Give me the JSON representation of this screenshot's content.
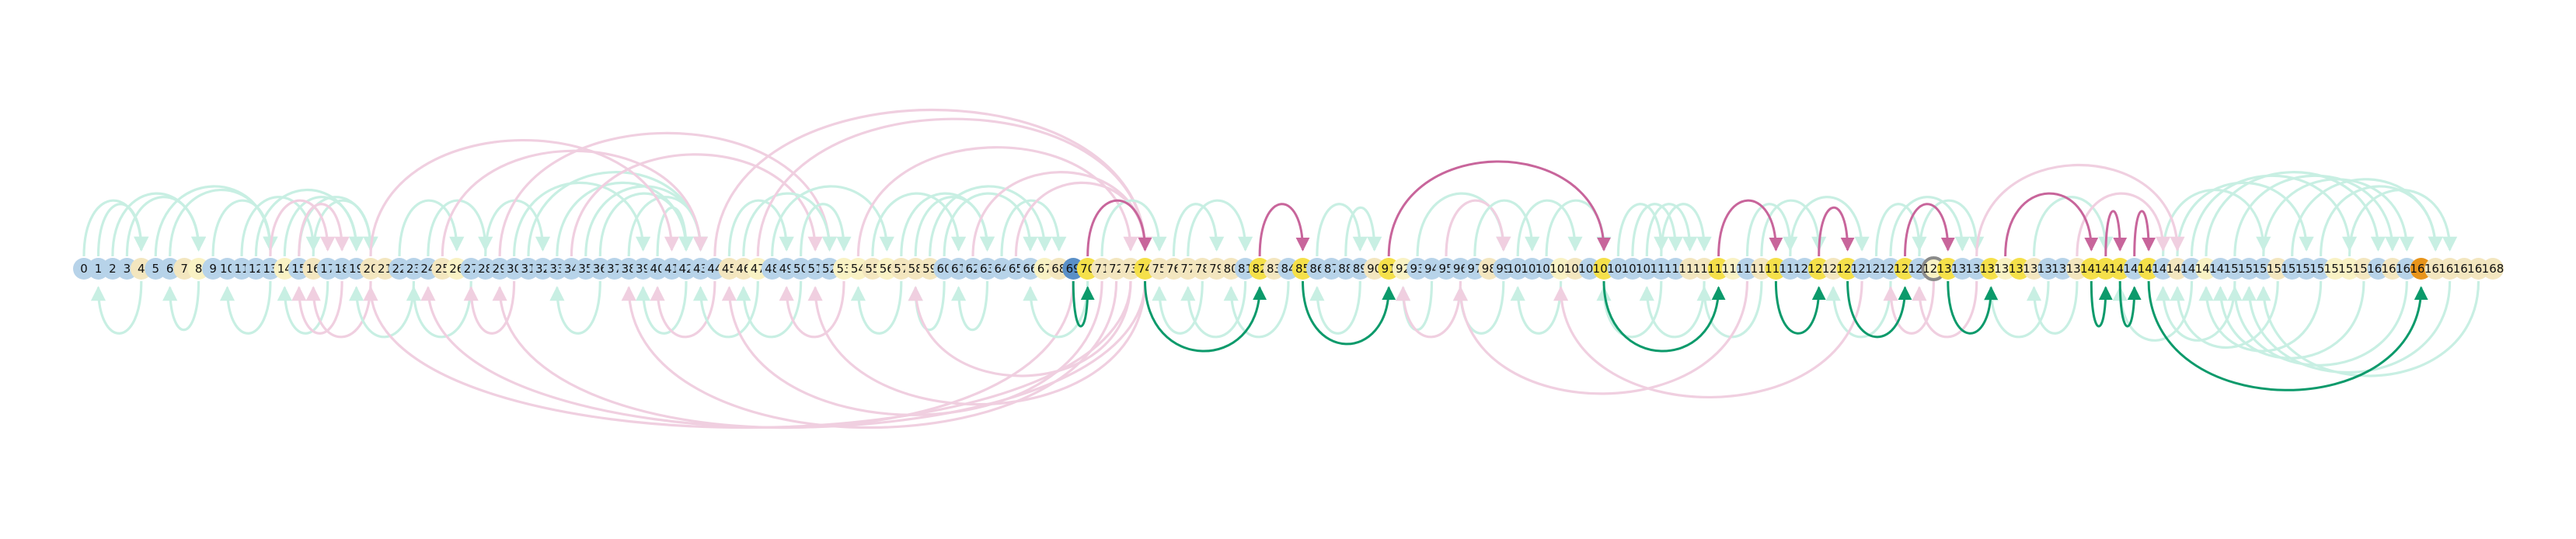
{
  "diagram": {
    "node_count": 169,
    "node_colors": {
      "blue": "#b7d3e9",
      "cream": "#f3e6bf",
      "yellow": "#f5e04a",
      "pale_yellow": "#f9f2c4",
      "orange": "#e8941a",
      "dark_blue": "#5a8fc7",
      "grey_ring": "#8a8a8a"
    },
    "edge_colors": {
      "teal_faint": "#c8efe3",
      "pink_faint": "#f0cfe0",
      "green_strong": "#0c9a6b",
      "magenta_strong": "#c8659b"
    },
    "blue_nodes": [
      0,
      1,
      2,
      3,
      5,
      6,
      9,
      10,
      11,
      12,
      13,
      15,
      17,
      18,
      19,
      22,
      23,
      24,
      27,
      28,
      29,
      30,
      31,
      32,
      33,
      34,
      35,
      36,
      37,
      38,
      39,
      40,
      41,
      42,
      43,
      44,
      48,
      49,
      50,
      51,
      52,
      60,
      61,
      62,
      63,
      64,
      65,
      66,
      81,
      82,
      84,
      86,
      87,
      88,
      89,
      93,
      94,
      95,
      96,
      97,
      99,
      100,
      101,
      102,
      105,
      106,
      107,
      108,
      109,
      110,
      111,
      116,
      119,
      120,
      121,
      123,
      124,
      125,
      126,
      127,
      128,
      131,
      132,
      133,
      137,
      138,
      142,
      143,
      145,
      147,
      149,
      150,
      151,
      152,
      154,
      155,
      156,
      160,
      162
    ],
    "yellow_nodes": [
      69,
      70,
      74,
      82,
      85,
      91,
      106,
      114,
      118,
      121,
      123,
      127,
      130,
      133,
      135,
      140,
      141,
      142,
      144
    ],
    "pale_yellow_nodes": [
      8,
      14,
      26,
      47,
      53,
      54,
      56,
      67,
      92,
      103,
      115,
      129,
      134,
      148,
      157,
      158
    ],
    "orange_nodes": [
      163
    ],
    "dark_blue_nodes": [
      69
    ],
    "ring_nodes": [
      129
    ],
    "edges_above": [
      {
        "from": 0,
        "to": 4,
        "style": "teal_faint"
      },
      {
        "from": 1,
        "to": 4,
        "style": "teal_faint"
      },
      {
        "from": 2,
        "to": 8,
        "style": "teal_faint"
      },
      {
        "from": 3,
        "to": 8,
        "style": "teal_faint"
      },
      {
        "from": 5,
        "to": 13,
        "style": "teal_faint"
      },
      {
        "from": 6,
        "to": 13,
        "style": "teal_faint"
      },
      {
        "from": 9,
        "to": 13,
        "style": "teal_faint"
      },
      {
        "from": 11,
        "to": 16,
        "style": "teal_faint"
      },
      {
        "from": 12,
        "to": 19,
        "style": "teal_faint"
      },
      {
        "from": 14,
        "to": 19,
        "style": "teal_faint"
      },
      {
        "from": 15,
        "to": 20,
        "style": "teal_faint"
      },
      {
        "from": 16,
        "to": 20,
        "style": "teal_faint"
      },
      {
        "from": 13,
        "to": 17,
        "style": "pink_faint"
      },
      {
        "from": 15,
        "to": 18,
        "style": "pink_faint"
      },
      {
        "from": 22,
        "to": 26,
        "style": "teal_faint"
      },
      {
        "from": 24,
        "to": 28,
        "style": "teal_faint"
      },
      {
        "from": 28,
        "to": 32,
        "style": "teal_faint"
      },
      {
        "from": 30,
        "to": 39,
        "style": "teal_faint"
      },
      {
        "from": 31,
        "to": 43,
        "style": "teal_faint"
      },
      {
        "from": 33,
        "to": 42,
        "style": "teal_faint"
      },
      {
        "from": 35,
        "to": 43,
        "style": "teal_faint"
      },
      {
        "from": 36,
        "to": 42,
        "style": "teal_faint"
      },
      {
        "from": 38,
        "to": 43,
        "style": "teal_faint"
      },
      {
        "from": 40,
        "to": 42,
        "style": "teal_faint"
      },
      {
        "from": 20,
        "to": 41,
        "style": "pink_faint"
      },
      {
        "from": 25,
        "to": 43,
        "style": "pink_faint"
      },
      {
        "from": 29,
        "to": 52,
        "style": "pink_faint"
      },
      {
        "from": 34,
        "to": 51,
        "style": "pink_faint"
      },
      {
        "from": 45,
        "to": 49,
        "style": "teal_faint"
      },
      {
        "from": 46,
        "to": 52,
        "style": "teal_faint"
      },
      {
        "from": 48,
        "to": 56,
        "style": "teal_faint"
      },
      {
        "from": 50,
        "to": 53,
        "style": "teal_faint"
      },
      {
        "from": 55,
        "to": 61,
        "style": "teal_faint"
      },
      {
        "from": 57,
        "to": 63,
        "style": "teal_faint"
      },
      {
        "from": 58,
        "to": 63,
        "style": "teal_faint"
      },
      {
        "from": 59,
        "to": 67,
        "style": "teal_faint"
      },
      {
        "from": 60,
        "to": 66,
        "style": "teal_faint"
      },
      {
        "from": 64,
        "to": 68,
        "style": "teal_faint"
      },
      {
        "from": 44,
        "to": 74,
        "style": "pink_faint"
      },
      {
        "from": 47,
        "to": 74,
        "style": "pink_faint"
      },
      {
        "from": 54,
        "to": 73,
        "style": "pink_faint"
      },
      {
        "from": 62,
        "to": 74,
        "style": "pink_faint"
      },
      {
        "from": 65,
        "to": 74,
        "style": "pink_faint"
      },
      {
        "from": 70,
        "to": 74,
        "style": "magenta_strong"
      },
      {
        "from": 71,
        "to": 75,
        "style": "teal_faint"
      },
      {
        "from": 76,
        "to": 79,
        "style": "teal_faint"
      },
      {
        "from": 77,
        "to": 81,
        "style": "teal_faint"
      },
      {
        "from": 82,
        "to": 85,
        "style": "magenta_strong"
      },
      {
        "from": 86,
        "to": 89,
        "style": "teal_faint"
      },
      {
        "from": 88,
        "to": 90,
        "style": "teal_faint"
      },
      {
        "from": 91,
        "to": 106,
        "style": "magenta_strong"
      },
      {
        "from": 93,
        "to": 99,
        "style": "teal_faint"
      },
      {
        "from": 95,
        "to": 99,
        "style": "pink_faint"
      },
      {
        "from": 97,
        "to": 101,
        "style": "teal_faint"
      },
      {
        "from": 100,
        "to": 104,
        "style": "teal_faint"
      },
      {
        "from": 102,
        "to": 106,
        "style": "teal_faint"
      },
      {
        "from": 107,
        "to": 110,
        "style": "teal_faint"
      },
      {
        "from": 108,
        "to": 111,
        "style": "teal_faint"
      },
      {
        "from": 109,
        "to": 112,
        "style": "teal_faint"
      },
      {
        "from": 110,
        "to": 113,
        "style": "teal_faint"
      },
      {
        "from": 114,
        "to": 118,
        "style": "magenta_strong"
      },
      {
        "from": 116,
        "to": 119,
        "style": "teal_faint"
      },
      {
        "from": 117,
        "to": 121,
        "style": "teal_faint"
      },
      {
        "from": 121,
        "to": 123,
        "style": "magenta_strong"
      },
      {
        "from": 119,
        "to": 124,
        "style": "teal_faint"
      },
      {
        "from": 125,
        "to": 128,
        "style": "teal_faint"
      },
      {
        "from": 126,
        "to": 131,
        "style": "teal_faint"
      },
      {
        "from": 127,
        "to": 130,
        "style": "magenta_strong"
      },
      {
        "from": 128,
        "to": 132,
        "style": "teal_faint"
      },
      {
        "from": 134,
        "to": 140,
        "style": "magenta_strong"
      },
      {
        "from": 136,
        "to": 141,
        "style": "teal_faint"
      },
      {
        "from": 141,
        "to": 142,
        "style": "magenta_strong"
      },
      {
        "from": 143,
        "to": 144,
        "style": "magenta_strong"
      },
      {
        "from": 145,
        "to": 152,
        "style": "teal_faint"
      },
      {
        "from": 146,
        "to": 155,
        "style": "teal_faint"
      },
      {
        "from": 147,
        "to": 158,
        "style": "teal_faint"
      },
      {
        "from": 148,
        "to": 160,
        "style": "teal_faint"
      },
      {
        "from": 150,
        "to": 161,
        "style": "teal_faint"
      },
      {
        "from": 152,
        "to": 162,
        "style": "teal_faint"
      },
      {
        "from": 154,
        "to": 164,
        "style": "teal_faint"
      },
      {
        "from": 156,
        "to": 164,
        "style": "teal_faint"
      },
      {
        "from": 158,
        "to": 165,
        "style": "teal_faint"
      },
      {
        "from": 139,
        "to": 145,
        "style": "pink_faint"
      },
      {
        "from": 132,
        "to": 146,
        "style": "pink_faint"
      }
    ],
    "edges_below": [
      {
        "from": 4,
        "to": 1,
        "style": "teal_faint"
      },
      {
        "from": 8,
        "to": 6,
        "style": "teal_faint"
      },
      {
        "from": 13,
        "to": 10,
        "style": "teal_faint"
      },
      {
        "from": 17,
        "to": 14,
        "style": "teal_faint"
      },
      {
        "from": 18,
        "to": 15,
        "style": "pink_faint"
      },
      {
        "from": 20,
        "to": 16,
        "style": "pink_faint"
      },
      {
        "from": 23,
        "to": 19,
        "style": "teal_faint"
      },
      {
        "from": 27,
        "to": 23,
        "style": "teal_faint"
      },
      {
        "from": 30,
        "to": 27,
        "style": "pink_faint"
      },
      {
        "from": 36,
        "to": 33,
        "style": "teal_faint"
      },
      {
        "from": 42,
        "to": 39,
        "style": "teal_faint"
      },
      {
        "from": 44,
        "to": 40,
        "style": "pink_faint"
      },
      {
        "from": 47,
        "to": 43,
        "style": "teal_faint"
      },
      {
        "from": 50,
        "to": 46,
        "style": "teal_faint"
      },
      {
        "from": 53,
        "to": 49,
        "style": "pink_faint"
      },
      {
        "from": 57,
        "to": 54,
        "style": "teal_faint"
      },
      {
        "from": 60,
        "to": 58,
        "style": "teal_faint"
      },
      {
        "from": 63,
        "to": 61,
        "style": "teal_faint"
      },
      {
        "from": 73,
        "to": 20,
        "style": "pink_faint"
      },
      {
        "from": 74,
        "to": 24,
        "style": "pink_faint"
      },
      {
        "from": 72,
        "to": 38,
        "style": "pink_faint"
      },
      {
        "from": 71,
        "to": 45,
        "style": "pink_faint"
      },
      {
        "from": 74,
        "to": 51,
        "style": "pink_faint"
      },
      {
        "from": 73,
        "to": 58,
        "style": "pink_faint"
      },
      {
        "from": 69,
        "to": 29,
        "style": "pink_faint"
      },
      {
        "from": 70,
        "to": 66,
        "style": "teal_faint"
      },
      {
        "from": 69,
        "to": 70,
        "style": "green_strong"
      },
      {
        "from": 74,
        "to": 82,
        "style": "green_strong"
      },
      {
        "from": 85,
        "to": 91,
        "style": "green_strong"
      },
      {
        "from": 78,
        "to": 75,
        "style": "teal_faint"
      },
      {
        "from": 81,
        "to": 77,
        "style": "teal_faint"
      },
      {
        "from": 84,
        "to": 80,
        "style": "teal_faint"
      },
      {
        "from": 89,
        "to": 86,
        "style": "teal_faint"
      },
      {
        "from": 94,
        "to": 92,
        "style": "teal_faint"
      },
      {
        "from": 96,
        "to": 92,
        "style": "pink_faint"
      },
      {
        "from": 99,
        "to": 96,
        "style": "teal_faint"
      },
      {
        "from": 103,
        "to": 100,
        "style": "teal_faint"
      },
      {
        "from": 106,
        "to": 114,
        "style": "green_strong"
      },
      {
        "from": 118,
        "to": 121,
        "style": "green_strong"
      },
      {
        "from": 123,
        "to": 127,
        "style": "green_strong"
      },
      {
        "from": 130,
        "to": 133,
        "style": "green_strong"
      },
      {
        "from": 140,
        "to": 141,
        "style": "green_strong"
      },
      {
        "from": 142,
        "to": 143,
        "style": "green_strong"
      },
      {
        "from": 144,
        "to": 163,
        "style": "green_strong"
      },
      {
        "from": 110,
        "to": 106,
        "style": "teal_faint"
      },
      {
        "from": 113,
        "to": 109,
        "style": "teal_faint"
      },
      {
        "from": 117,
        "to": 113,
        "style": "teal_faint"
      },
      {
        "from": 126,
        "to": 122,
        "style": "teal_faint"
      },
      {
        "from": 129,
        "to": 126,
        "style": "pink_faint"
      },
      {
        "from": 132,
        "to": 128,
        "style": "pink_faint"
      },
      {
        "from": 137,
        "to": 133,
        "style": "teal_faint"
      },
      {
        "from": 139,
        "to": 136,
        "style": "teal_faint"
      },
      {
        "from": 116,
        "to": 96,
        "style": "pink_faint"
      },
      {
        "from": 124,
        "to": 103,
        "style": "pink_faint"
      },
      {
        "from": 147,
        "to": 142,
        "style": "teal_faint"
      },
      {
        "from": 150,
        "to": 145,
        "style": "teal_faint"
      },
      {
        "from": 153,
        "to": 146,
        "style": "teal_faint"
      },
      {
        "from": 156,
        "to": 148,
        "style": "teal_faint"
      },
      {
        "from": 159,
        "to": 149,
        "style": "teal_faint"
      },
      {
        "from": 162,
        "to": 150,
        "style": "teal_faint"
      },
      {
        "from": 165,
        "to": 151,
        "style": "teal_faint"
      },
      {
        "from": 167,
        "to": 152,
        "style": "teal_faint"
      }
    ]
  }
}
